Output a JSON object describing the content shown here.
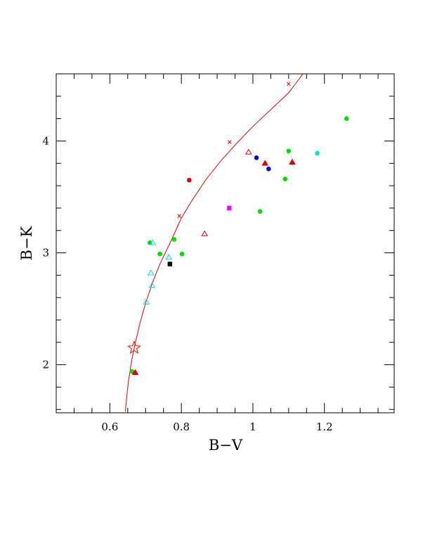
{
  "chart_data": {
    "type": "scatter",
    "title": "",
    "xlabel": "B−V",
    "ylabel": "B−K",
    "xlim": [
      0.45,
      1.395
    ],
    "ylim": [
      1.57,
      4.6
    ],
    "xticks": [
      0.6,
      0.8,
      1.0,
      1.2
    ],
    "xtick_labels": [
      "0.6",
      "0.8",
      "1",
      "1.2"
    ],
    "yticks": [
      2,
      3,
      4
    ],
    "ytick_labels": [
      "2",
      "3",
      "4"
    ],
    "x_minor_step": 0.05,
    "y_minor_step": 0.2,
    "grid": false,
    "curve": {
      "color": "#e00000",
      "x": [
        0.6435,
        0.647,
        0.652,
        0.66,
        0.67,
        0.685,
        0.7,
        0.72,
        0.74,
        0.77,
        0.8,
        0.83,
        0.87,
        0.91,
        0.955,
        1.0,
        1.05,
        1.1,
        1.14
      ],
      "y": [
        1.58,
        1.71,
        1.85,
        2.02,
        2.18,
        2.38,
        2.55,
        2.74,
        2.9,
        3.1,
        3.31,
        3.47,
        3.66,
        3.82,
        3.98,
        4.13,
        4.28,
        4.43,
        4.6
      ],
      "cross_marks": {
        "x": [
          0.794,
          0.935,
          1.1
        ],
        "y": [
          3.33,
          3.99,
          4.51
        ]
      }
    },
    "star": {
      "x": 0.668,
      "y": 2.15,
      "color": "#e00000"
    },
    "series": [
      {
        "marker": "filled-circle",
        "color": "#00e000",
        "x": [
          0.712,
          0.78,
          0.74,
          0.802,
          0.662,
          1.02,
          1.1,
          1.09,
          1.262
        ],
        "y": [
          3.09,
          3.12,
          2.99,
          2.99,
          1.94,
          3.37,
          3.91,
          3.66,
          4.2
        ]
      },
      {
        "marker": "filled-circle",
        "color": "#e00000",
        "x": [
          0.822
        ],
        "y": [
          3.65
        ]
      },
      {
        "marker": "filled-circle",
        "color": "#0000e0",
        "x": [
          1.01,
          1.044
        ],
        "y": [
          3.85,
          3.75
        ]
      },
      {
        "marker": "filled-circle",
        "color": "#00e0e0",
        "x": [
          1.18
        ],
        "y": [
          3.89
        ]
      },
      {
        "marker": "filled-triangle",
        "color": "#e00000",
        "x": [
          0.671,
          1.034,
          1.11
        ],
        "y": [
          1.93,
          3.8,
          3.81
        ]
      },
      {
        "marker": "open-triangle",
        "color": "#e00000",
        "x": [
          0.865,
          0.988
        ],
        "y": [
          3.17,
          3.9
        ]
      },
      {
        "marker": "open-triangle",
        "color": "#00e0e0",
        "x": [
          0.72,
          0.715,
          0.718,
          0.702,
          0.765
        ],
        "y": [
          3.09,
          2.82,
          2.71,
          2.56,
          2.96
        ]
      },
      {
        "marker": "filled-square",
        "color": "#000000",
        "x": [
          0.768
        ],
        "y": [
          2.9
        ]
      },
      {
        "marker": "filled-square",
        "color": "#ff00ff",
        "x": [
          0.934
        ],
        "y": [
          3.4
        ]
      }
    ]
  }
}
